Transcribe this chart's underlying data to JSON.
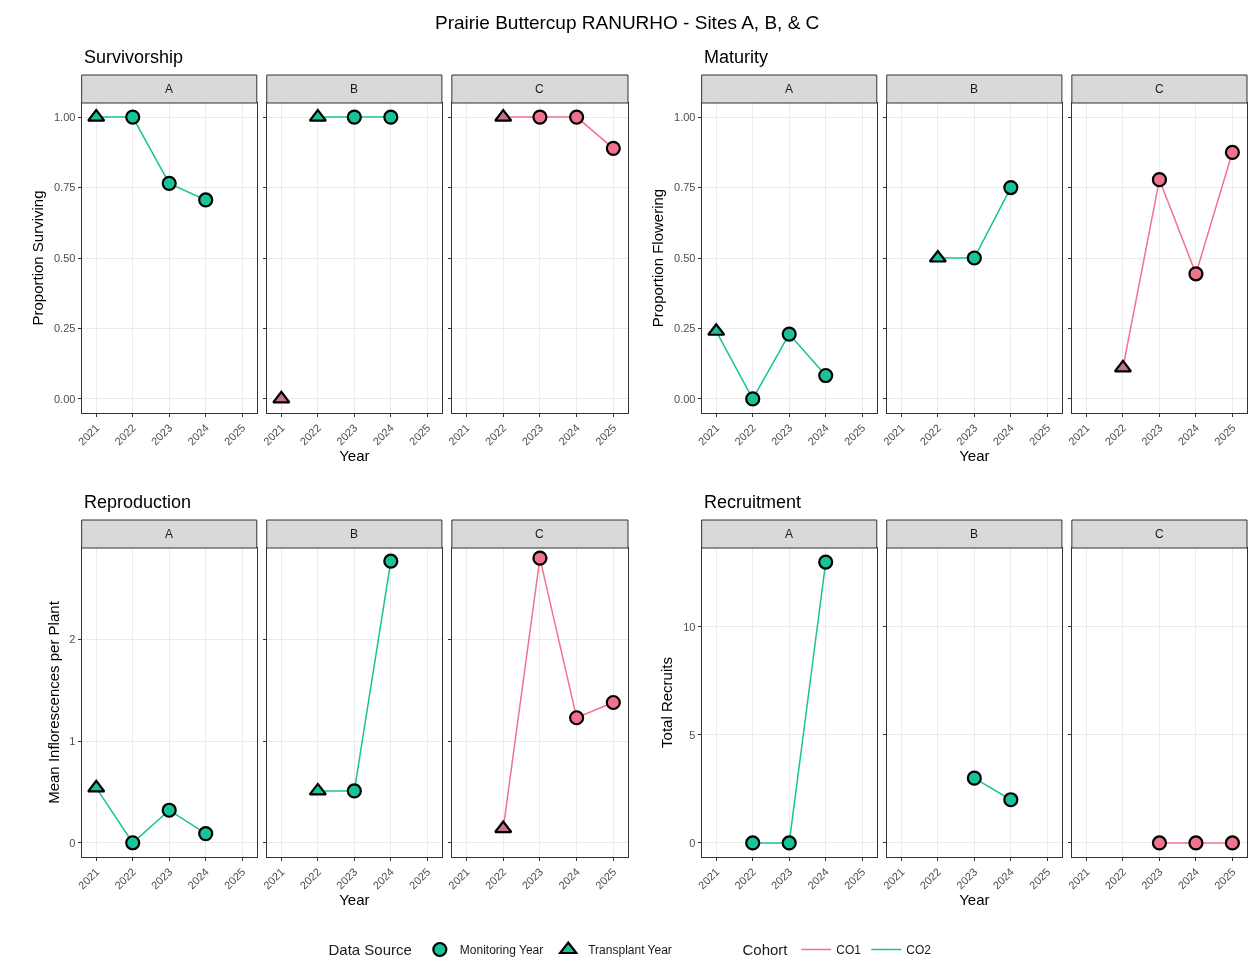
{
  "chart_data": [
    {
      "type": "line",
      "title": "Survivorship",
      "subtitle": "A",
      "ylabel": "Proportion Surviving",
      "annotations": [
        "Prairie Buttercup RANURHO - Sites A, B, & C"
      ],
      "legend": "bottom",
      "legend_title": "Data Source",
      "grid": true,
      "xlim": [
        2020.6,
        2025.4
      ],
      "xticks": [
        2021,
        2022,
        2023,
        2024,
        2025
      ],
      "ylim": [
        -0.05,
        1.05
      ],
      "yticks": [
        {
          "value": 0,
          "label": "0.00"
        },
        {
          "value": 0.25,
          "label": "0.25"
        },
        {
          "value": 0.5,
          "label": "0.50"
        },
        {
          "value": 0.75,
          "label": "0.75"
        },
        {
          "value": 1,
          "label": "1.00"
        }
      ],
      "series": [
        {
          "name": "CO2",
          "marker": "none",
          "color": "#19c39a",
          "x": [
            2021,
            2022,
            2023,
            2024
          ],
          "values": [
            1.0,
            1.0,
            0.765,
            0.706
          ]
        },
        {
          "name": "Monitoring Year",
          "type": "scatter",
          "marker": "circle",
          "color": "#19c39a",
          "x": [
            2022,
            2023,
            2024
          ],
          "values": [
            1.0,
            0.765,
            0.706
          ]
        },
        {
          "name": "Transplant Year",
          "type": "scatter",
          "marker": "triangle",
          "color": "#19c39a",
          "x": [
            2021
          ],
          "values": [
            1.0
          ]
        }
      ]
    },
    {
      "type": "line",
      "subtitle": "B",
      "xlabel": "Year",
      "legend_title": "Cohort",
      "grid": true,
      "tick_labels": "x",
      "xlim": [
        2020.6,
        2025.4
      ],
      "xticks": [
        2021,
        2022,
        2023,
        2024,
        2025
      ],
      "ylim": [
        -0.05,
        1.05
      ],
      "yticks": [
        0,
        0.25,
        0.5,
        0.75,
        1
      ],
      "series": [
        {
          "type": "scatter",
          "marker": "triangle",
          "color": "#c4738a",
          "x": [
            2021
          ],
          "values": [
            0.0
          ]
        },
        {
          "marker": "none",
          "color": "#19c39a",
          "x": [
            2022,
            2023,
            2024
          ],
          "values": [
            1.0,
            1.0,
            1.0
          ]
        },
        {
          "type": "scatter",
          "marker": "triangle",
          "color": "#19c39a",
          "x": [
            2022
          ],
          "values": [
            1.0
          ]
        },
        {
          "type": "scatter",
          "marker": "circle",
          "color": "#19c39a",
          "x": [
            2023,
            2024
          ],
          "values": [
            1.0,
            1.0
          ]
        }
      ]
    },
    {
      "type": "line",
      "subtitle": "C",
      "grid": true,
      "tick_labels": "x",
      "xlim": [
        2020.6,
        2025.4
      ],
      "xticks": [
        2021,
        2022,
        2023,
        2024,
        2025
      ],
      "ylim": [
        -0.05,
        1.05
      ],
      "yticks": [
        0,
        0.25,
        0.5,
        0.75,
        1
      ],
      "series": [
        {
          "name": "CO1",
          "marker": "none",
          "color": "#f0728f",
          "x": [
            2022,
            2023,
            2024,
            2025
          ],
          "values": [
            1.0,
            1.0,
            1.0,
            0.889
          ]
        },
        {
          "type": "scatter",
          "marker": "triangle",
          "color": "#c4738a",
          "x": [
            2022
          ],
          "values": [
            1.0
          ]
        },
        {
          "type": "scatter",
          "marker": "circle",
          "color": "#f0728f",
          "x": [
            2023,
            2024,
            2025
          ],
          "values": [
            1.0,
            1.0,
            0.889
          ]
        }
      ]
    },
    {
      "type": "line",
      "title": "Maturity",
      "subtitle": "A",
      "ylabel": "Proportion Flowering",
      "grid": true,
      "xlim": [
        2020.6,
        2025.4
      ],
      "xticks": [
        2021,
        2022,
        2023,
        2024,
        2025
      ],
      "ylim": [
        -0.05,
        1.05
      ],
      "yticks": [
        {
          "value": 0,
          "label": "0.00"
        },
        {
          "value": 0.25,
          "label": "0.25"
        },
        {
          "value": 0.5,
          "label": "0.50"
        },
        {
          "value": 0.75,
          "label": "0.75"
        },
        {
          "value": 1,
          "label": "1.00"
        }
      ],
      "series": [
        {
          "marker": "none",
          "color": "#19c39a",
          "x": [
            2021,
            2022,
            2023,
            2024
          ],
          "values": [
            0.24,
            0.0,
            0.23,
            0.083
          ]
        },
        {
          "type": "scatter",
          "marker": "triangle",
          "color": "#19c39a",
          "x": [
            2021
          ],
          "values": [
            0.24
          ]
        },
        {
          "type": "scatter",
          "marker": "circle",
          "color": "#19c39a",
          "x": [
            2022,
            2023,
            2024
          ],
          "values": [
            0.0,
            0.23,
            0.083
          ]
        }
      ]
    },
    {
      "type": "line",
      "subtitle": "B",
      "xlabel": "Year",
      "grid": true,
      "tick_labels": "x",
      "xlim": [
        2020.6,
        2025.4
      ],
      "xticks": [
        2021,
        2022,
        2023,
        2024,
        2025
      ],
      "ylim": [
        -0.05,
        1.05
      ],
      "yticks": [
        0,
        0.25,
        0.5,
        0.75,
        1
      ],
      "series": [
        {
          "marker": "none",
          "color": "#19c39a",
          "x": [
            2022,
            2023,
            2024
          ],
          "values": [
            0.5,
            0.5,
            0.75
          ]
        },
        {
          "type": "scatter",
          "marker": "triangle",
          "color": "#19c39a",
          "x": [
            2022
          ],
          "values": [
            0.5
          ]
        },
        {
          "type": "scatter",
          "marker": "circle",
          "color": "#19c39a",
          "x": [
            2023,
            2024
          ],
          "values": [
            0.5,
            0.75
          ]
        }
      ]
    },
    {
      "type": "line",
      "subtitle": "C",
      "grid": true,
      "tick_labels": "x",
      "xlim": [
        2020.6,
        2025.4
      ],
      "xticks": [
        2021,
        2022,
        2023,
        2024,
        2025
      ],
      "ylim": [
        -0.05,
        1.05
      ],
      "yticks": [
        0,
        0.25,
        0.5,
        0.75,
        1
      ],
      "series": [
        {
          "marker": "none",
          "color": "#f0728f",
          "x": [
            2022,
            2023,
            2024,
            2025
          ],
          "values": [
            0.11,
            0.778,
            0.444,
            0.875
          ]
        },
        {
          "type": "scatter",
          "marker": "triangle",
          "color": "#c4738a",
          "x": [
            2022
          ],
          "values": [
            0.11
          ]
        },
        {
          "type": "scatter",
          "marker": "circle",
          "color": "#f0728f",
          "x": [
            2023,
            2024,
            2025
          ],
          "values": [
            0.778,
            0.444,
            0.875
          ]
        }
      ]
    },
    {
      "type": "line",
      "title": "Reproduction",
      "subtitle": "A",
      "ylabel": "Mean Inflorescences per Plant",
      "grid": true,
      "xlim": [
        2020.6,
        2025.4
      ],
      "xticks": [
        2021,
        2022,
        2023,
        2024,
        2025
      ],
      "ylim": [
        -0.14,
        2.9
      ],
      "yticks": [
        0,
        1,
        2
      ],
      "series": [
        {
          "marker": "none",
          "color": "#19c39a",
          "x": [
            2021,
            2022,
            2023,
            2024
          ],
          "values": [
            0.54,
            0.0,
            0.32,
            0.09
          ]
        },
        {
          "type": "scatter",
          "marker": "triangle",
          "color": "#19c39a",
          "x": [
            2021
          ],
          "values": [
            0.54
          ]
        },
        {
          "type": "scatter",
          "marker": "circle",
          "color": "#19c39a",
          "x": [
            2022,
            2023,
            2024
          ],
          "values": [
            0.0,
            0.32,
            0.09
          ]
        }
      ]
    },
    {
      "type": "line",
      "subtitle": "B",
      "xlabel": "Year",
      "grid": true,
      "tick_labels": "x",
      "xlim": [
        2020.6,
        2025.4
      ],
      "xticks": [
        2021,
        2022,
        2023,
        2024,
        2025
      ],
      "ylim": [
        -0.14,
        2.9
      ],
      "yticks": [
        0,
        1,
        2
      ],
      "series": [
        {
          "marker": "none",
          "color": "#19c39a",
          "x": [
            2022,
            2023,
            2024
          ],
          "values": [
            0.51,
            0.51,
            2.77
          ]
        },
        {
          "type": "scatter",
          "marker": "triangle",
          "color": "#19c39a",
          "x": [
            2022
          ],
          "values": [
            0.51
          ]
        },
        {
          "type": "scatter",
          "marker": "circle",
          "color": "#19c39a",
          "x": [
            2023,
            2024
          ],
          "values": [
            0.51,
            2.77
          ]
        }
      ]
    },
    {
      "type": "line",
      "subtitle": "C",
      "grid": true,
      "tick_labels": "x",
      "xlim": [
        2020.6,
        2025.4
      ],
      "xticks": [
        2021,
        2022,
        2023,
        2024,
        2025
      ],
      "ylim": [
        -0.14,
        2.9
      ],
      "yticks": [
        0,
        1,
        2
      ],
      "series": [
        {
          "marker": "none",
          "color": "#f0728f",
          "x": [
            2022,
            2023,
            2024,
            2025
          ],
          "values": [
            0.14,
            2.8,
            1.23,
            1.38
          ]
        },
        {
          "type": "scatter",
          "marker": "triangle",
          "color": "#c4738a",
          "x": [
            2022
          ],
          "values": [
            0.14
          ]
        },
        {
          "type": "scatter",
          "marker": "circle",
          "color": "#f0728f",
          "x": [
            2023,
            2024,
            2025
          ],
          "values": [
            2.8,
            1.23,
            1.38
          ]
        }
      ]
    },
    {
      "type": "line",
      "title": "Recruitment",
      "subtitle": "A",
      "ylabel": "Total Recruits",
      "grid": true,
      "xlim": [
        2020.6,
        2025.4
      ],
      "xticks": [
        2021,
        2022,
        2023,
        2024,
        2025
      ],
      "ylim": [
        -0.65,
        13.65
      ],
      "yticks": [
        0,
        5,
        10
      ],
      "series": [
        {
          "marker": "none",
          "color": "#19c39a",
          "x": [
            2022,
            2023,
            2024
          ],
          "values": [
            0,
            0,
            13
          ]
        },
        {
          "type": "scatter",
          "marker": "circle",
          "color": "#19c39a",
          "x": [
            2022,
            2023,
            2024
          ],
          "values": [
            0,
            0,
            13
          ]
        }
      ]
    },
    {
      "type": "line",
      "subtitle": "B",
      "xlabel": "Year",
      "grid": true,
      "tick_labels": "x",
      "xlim": [
        2020.6,
        2025.4
      ],
      "xticks": [
        2021,
        2022,
        2023,
        2024,
        2025
      ],
      "ylim": [
        -0.65,
        13.65
      ],
      "yticks": [
        0,
        5,
        10
      ],
      "series": [
        {
          "marker": "none",
          "color": "#19c39a",
          "x": [
            2023,
            2024
          ],
          "values": [
            3,
            2
          ]
        },
        {
          "type": "scatter",
          "marker": "circle",
          "color": "#19c39a",
          "x": [
            2023,
            2024
          ],
          "values": [
            3,
            2
          ]
        }
      ]
    },
    {
      "type": "line",
      "subtitle": "C",
      "grid": true,
      "tick_labels": "x",
      "xlim": [
        2020.6,
        2025.4
      ],
      "xticks": [
        2021,
        2022,
        2023,
        2024,
        2025
      ],
      "ylim": [
        -0.65,
        13.65
      ],
      "yticks": [
        0,
        5,
        10
      ],
      "series": [
        {
          "marker": "none",
          "color": "#f0728f",
          "x": [
            2023,
            2024,
            2025
          ],
          "values": [
            0,
            0,
            0
          ]
        },
        {
          "type": "scatter",
          "marker": "circle",
          "color": "#f0728f",
          "x": [
            2023,
            2024,
            2025
          ],
          "values": [
            0,
            0,
            0
          ]
        }
      ]
    }
  ]
}
